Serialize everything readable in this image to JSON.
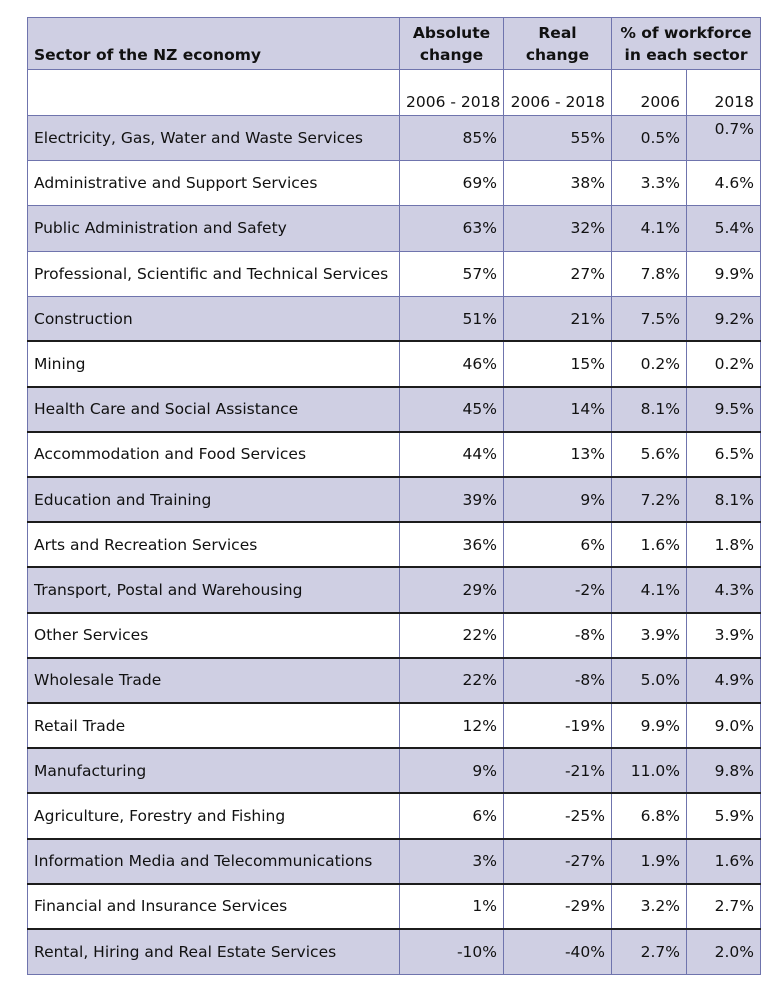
{
  "header": {
    "sector_label": "Sector of the NZ economy",
    "absolute_change_line1": "Absolute",
    "absolute_change_line2": "change",
    "real_change_line1": "Real",
    "real_change_line2": "change",
    "workforce_line1": "% of workforce",
    "workforce_line2": "in each sector",
    "period_absolute": "2006 - 2018",
    "period_real": "2006 - 2018",
    "year_2006": "2006",
    "year_2018": "2018"
  },
  "rows": [
    {
      "sector": "Electricity, Gas, Water and Waste Services",
      "absolute": "85%",
      "real": "55%",
      "pct2006": "0.5%",
      "pct2018": "0.7%"
    },
    {
      "sector": "Administrative and Support Services",
      "absolute": "69%",
      "real": "38%",
      "pct2006": "3.3%",
      "pct2018": "4.6%"
    },
    {
      "sector": "Public Administration and Safety",
      "absolute": "63%",
      "real": "32%",
      "pct2006": "4.1%",
      "pct2018": "5.4%"
    },
    {
      "sector": "Professional, Scientific and Technical Services",
      "absolute": "57%",
      "real": "27%",
      "pct2006": "7.8%",
      "pct2018": "9.9%"
    },
    {
      "sector": "Construction",
      "absolute": "51%",
      "real": "21%",
      "pct2006": "7.5%",
      "pct2018": "9.2%"
    },
    {
      "sector": "Mining",
      "absolute": "46%",
      "real": "15%",
      "pct2006": "0.2%",
      "pct2018": "0.2%"
    },
    {
      "sector": "Health Care and Social Assistance",
      "absolute": "45%",
      "real": "14%",
      "pct2006": "8.1%",
      "pct2018": "9.5%"
    },
    {
      "sector": "Accommodation and Food Services",
      "absolute": "44%",
      "real": "13%",
      "pct2006": "5.6%",
      "pct2018": "6.5%"
    },
    {
      "sector": "Education and Training",
      "absolute": "39%",
      "real": "9%",
      "pct2006": "7.2%",
      "pct2018": "8.1%"
    },
    {
      "sector": "Arts and Recreation Services",
      "absolute": "36%",
      "real": "6%",
      "pct2006": "1.6%",
      "pct2018": "1.8%"
    },
    {
      "sector": "Transport, Postal and Warehousing",
      "absolute": "29%",
      "real": "-2%",
      "pct2006": "4.1%",
      "pct2018": "4.3%"
    },
    {
      "sector": "Other Services",
      "absolute": "22%",
      "real": "-8%",
      "pct2006": "3.9%",
      "pct2018": "3.9%"
    },
    {
      "sector": "Wholesale Trade",
      "absolute": "22%",
      "real": "-8%",
      "pct2006": "5.0%",
      "pct2018": "4.9%"
    },
    {
      "sector": "Retail Trade",
      "absolute": "12%",
      "real": "-19%",
      "pct2006": "9.9%",
      "pct2018": "9.0%"
    },
    {
      "sector": "Manufacturing",
      "absolute": "9%",
      "real": "-21%",
      "pct2006": "11.0%",
      "pct2018": "9.8%"
    },
    {
      "sector": "Agriculture, Forestry and Fishing",
      "absolute": "6%",
      "real": "-25%",
      "pct2006": "6.8%",
      "pct2018": "5.9%"
    },
    {
      "sector": "Information Media and Telecommunications",
      "absolute": "3%",
      "real": "-27%",
      "pct2006": "1.9%",
      "pct2018": "1.6%"
    },
    {
      "sector": "Financial and Insurance Services",
      "absolute": "1%",
      "real": "-29%",
      "pct2006": "3.2%",
      "pct2018": "2.7%"
    },
    {
      "sector": "Rental, Hiring and Real Estate Services",
      "absolute": "-10%",
      "real": "-40%",
      "pct2006": "2.7%",
      "pct2018": "2.0%"
    }
  ]
}
